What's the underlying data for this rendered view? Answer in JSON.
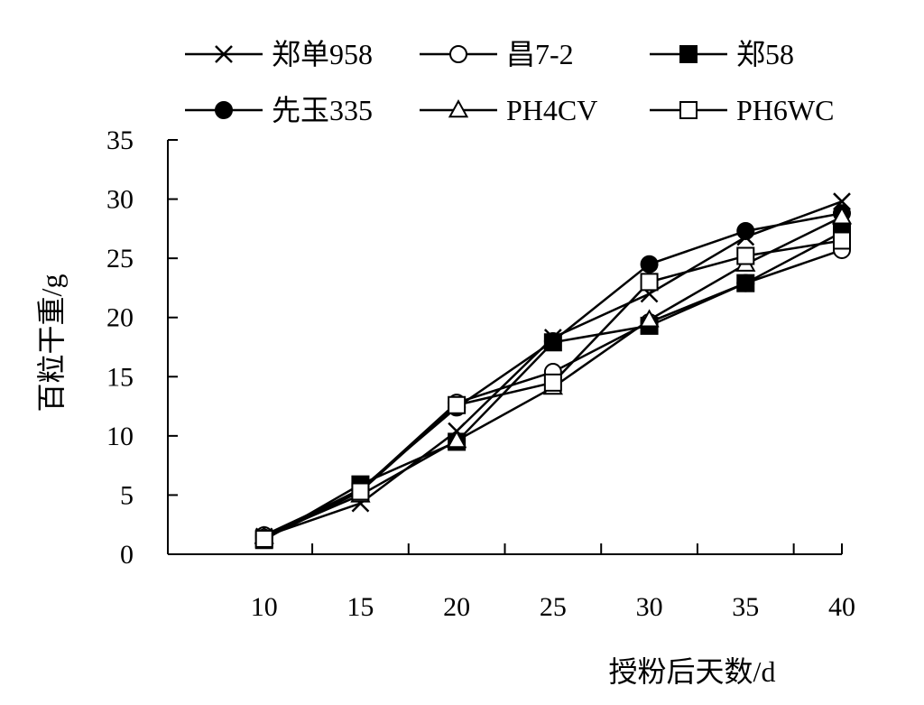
{
  "chart_data": {
    "type": "line",
    "title": "",
    "xlabel": "授粉后天数/d",
    "ylabel": "百粒干重/g",
    "x": [
      10,
      15,
      20,
      25,
      30,
      35,
      40
    ],
    "xticks": [
      "10",
      "15",
      "20",
      "25",
      "30",
      "35",
      "40"
    ],
    "yticks": [
      "0",
      "5",
      "10",
      "15",
      "20",
      "25",
      "30",
      "35"
    ],
    "xlim": [
      5,
      40
    ],
    "ylim": [
      0,
      35
    ],
    "grid": false,
    "legend_position": "top",
    "series": [
      {
        "name": "郑单958",
        "marker": "x",
        "color": "#000000",
        "values": [
          1.5,
          4.3,
          10.4,
          18.3,
          22.0,
          26.8,
          29.8
        ]
      },
      {
        "name": "昌7-2",
        "marker": "circle-open",
        "color": "#000000",
        "values": [
          1.6,
          5.4,
          12.8,
          15.4,
          19.6,
          22.9,
          25.7
        ]
      },
      {
        "name": "郑58",
        "marker": "square-filled",
        "color": "#000000",
        "values": [
          1.2,
          5.9,
          9.5,
          17.9,
          19.3,
          22.9,
          27.2
        ]
      },
      {
        "name": "先玉335",
        "marker": "circle-filled",
        "color": "#000000",
        "values": [
          1.4,
          5.5,
          12.4,
          18.0,
          24.5,
          27.3,
          28.8
        ]
      },
      {
        "name": "PH4CV",
        "marker": "triangle-open",
        "color": "#000000",
        "values": [
          1.5,
          5.0,
          9.6,
          14.1,
          19.8,
          24.5,
          28.5
        ]
      },
      {
        "name": "PH6WC",
        "marker": "square-open",
        "color": "#000000",
        "values": [
          1.3,
          5.3,
          12.6,
          14.5,
          23.0,
          25.2,
          26.5
        ]
      }
    ]
  }
}
